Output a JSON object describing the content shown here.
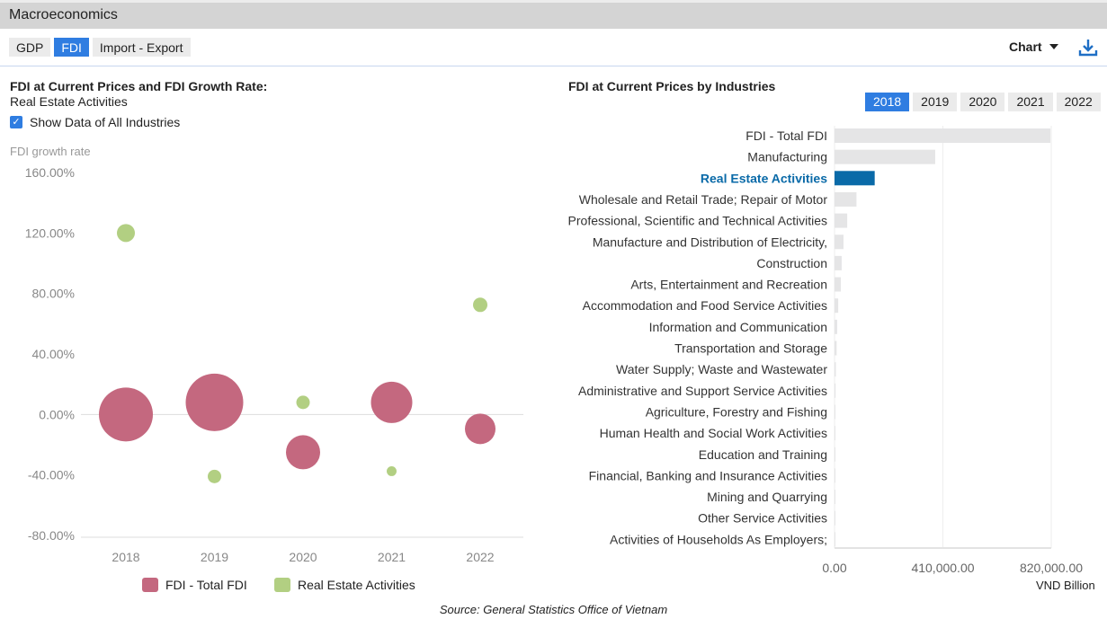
{
  "header": {
    "title": "Macroeconomics"
  },
  "tabs": [
    {
      "label": "GDP"
    },
    {
      "label": "FDI",
      "active": true
    },
    {
      "label": "Import - Export"
    }
  ],
  "toolbar": {
    "chart_label": "Chart",
    "download_icon": "download-icon"
  },
  "left": {
    "title": "FDI at Current Prices and FDI Growth Rate:",
    "subtitle": "Real Estate Activities",
    "checkbox_label": "Show Data of All Industries",
    "checked": true
  },
  "right": {
    "title": "FDI at Current Prices by Industries",
    "years": [
      "2018",
      "2019",
      "2020",
      "2021",
      "2022"
    ],
    "active_year": "2018"
  },
  "source": "Source: General Statistics Office of Vietnam",
  "colors": {
    "fdi": "#c4687f",
    "real_estate": "#b2cf82",
    "highlight": "#0a6aa8",
    "bar": "#e5e5e6",
    "accent": "#2f7de1"
  },
  "chart_data": [
    {
      "type": "scatter",
      "subtype": "bubble",
      "ylabel": "FDI growth rate",
      "categories": [
        "2018",
        "2019",
        "2020",
        "2021",
        "2022"
      ],
      "ylim": [
        -80,
        160
      ],
      "yticks": [
        "160.00%",
        "120.00%",
        "80.00%",
        "40.00%",
        "0.00%",
        "-40.00%",
        "-80.00%"
      ],
      "ytick_values": [
        160,
        120,
        80,
        40,
        0,
        -40,
        -80
      ],
      "series": [
        {
          "name": "FDI - Total FDI",
          "values": [
            0,
            8,
            -25,
            8,
            -9.5
          ],
          "bubble_size": [
            900,
            1024,
            361,
            529,
            289
          ]
        },
        {
          "name": "Real Estate Activities",
          "values": [
            120,
            -41,
            8,
            -37.5,
            72.5
          ],
          "bubble_size": [
            100,
            56,
            56,
            30,
            64
          ]
        }
      ],
      "legend": "bottom",
      "grid": false
    },
    {
      "type": "bar",
      "orientation": "horizontal",
      "xlabel": "VND Billion",
      "xlim": [
        0,
        820000
      ],
      "xticks": [
        "0.00",
        "410,000.00",
        "820,000.00"
      ],
      "xtick_values": [
        0,
        410000,
        820000
      ],
      "highlight": "Real Estate Activities",
      "categories": [
        "FDI - Total FDI",
        "Manufacturing",
        "Real Estate Activities",
        "Wholesale and Retail Trade; Repair of Motor",
        "Professional, Scientific and Technical Activities",
        "Manufacture and Distribution of Electricity,",
        "Construction",
        "Arts, Entertainment and Recreation",
        "Accommodation and Food Service Activities",
        "Information and Communication",
        "Transportation and Storage",
        "Water Supply; Waste and Wastewater",
        "Administrative and Support Service Activities",
        "Agriculture, Forestry and Fishing",
        "Human Health and Social Work Activities",
        "Education and Training",
        "Financial, Banking and Insurance Activities",
        "Mining and Quarrying",
        "Other Service Activities",
        "Activities of Households As Employers;"
      ],
      "values": [
        817000,
        381000,
        152000,
        83000,
        48000,
        34000,
        27000,
        24000,
        14000,
        10000,
        8000,
        5000,
        4000,
        3000,
        2000,
        1500,
        1000,
        500,
        300,
        0
      ]
    }
  ]
}
